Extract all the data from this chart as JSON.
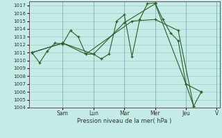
{
  "xlabel": "Pression niveau de la mer( hPa )",
  "background_color": "#c5ebe6",
  "grid_color": "#9eccc5",
  "line_color": "#2a5e2a",
  "marker_color": "#2a5e2a",
  "ylim": [
    1004,
    1017.5
  ],
  "yticks": [
    1004,
    1005,
    1006,
    1007,
    1008,
    1009,
    1010,
    1011,
    1012,
    1013,
    1014,
    1015,
    1016,
    1017
  ],
  "x_day_labels": [
    "Sam",
    "Lun",
    "Mar",
    "Mer",
    "Jeu",
    "V"
  ],
  "x_day_positions": [
    2.0,
    4.0,
    6.0,
    8.0,
    10.0,
    12.0
  ],
  "series1": [
    [
      0,
      1011.0
    ],
    [
      0.5,
      1009.7
    ],
    [
      1.0,
      1011.2
    ],
    [
      1.5,
      1012.2
    ],
    [
      2.0,
      1012.1
    ],
    [
      2.5,
      1013.8
    ],
    [
      3.0,
      1013.0
    ],
    [
      3.5,
      1010.8
    ],
    [
      4.0,
      1010.8
    ],
    [
      4.5,
      1010.2
    ],
    [
      5.0,
      1010.8
    ],
    [
      5.5,
      1015.0
    ],
    [
      6.0,
      1015.8
    ],
    [
      6.5,
      1010.5
    ],
    [
      7.0,
      1015.2
    ],
    [
      7.5,
      1017.2
    ],
    [
      8.0,
      1017.3
    ],
    [
      8.5,
      1015.2
    ],
    [
      9.0,
      1013.5
    ],
    [
      9.5,
      1012.5
    ],
    [
      10.0,
      1007.0
    ],
    [
      10.5,
      1004.2
    ],
    [
      11.0,
      1006.0
    ]
  ],
  "series2": [
    [
      0,
      1011.0
    ],
    [
      2.0,
      1012.2
    ],
    [
      4.0,
      1010.8
    ],
    [
      6.0,
      1014.8
    ],
    [
      8.0,
      1017.2
    ],
    [
      10.0,
      1007.0
    ],
    [
      11.0,
      1006.0
    ]
  ],
  "series3": [
    [
      0,
      1011.0
    ],
    [
      2.0,
      1012.2
    ],
    [
      3.5,
      1010.8
    ],
    [
      6.5,
      1015.0
    ],
    [
      8.0,
      1015.2
    ],
    [
      9.5,
      1013.8
    ],
    [
      10.5,
      1004.2
    ]
  ]
}
